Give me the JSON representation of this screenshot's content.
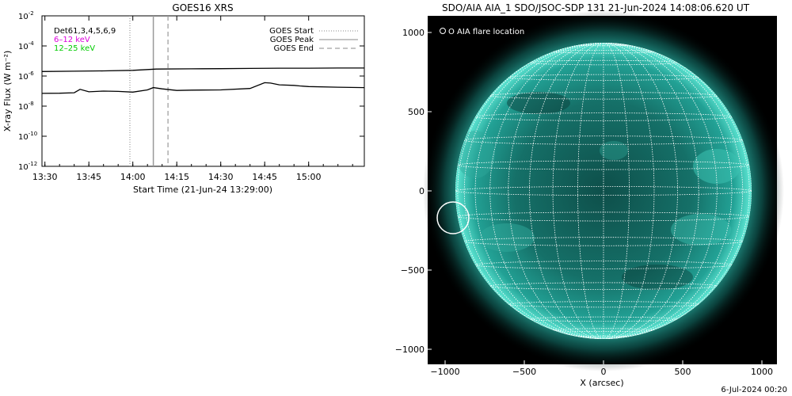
{
  "chart_data": [
    {
      "type": "line",
      "title": "GOES16 XRS",
      "xlabel": "Start Time (21-Jun-24 13:29:00)",
      "ylabel": "X-ray Flux (W m⁻²)",
      "y_scale": "log",
      "ylim": [
        "1e-12",
        "1e-2"
      ],
      "y_ticks": [
        {
          "exp": "-2",
          "value": 0.01
        },
        {
          "exp": "-4",
          "value": 0.0001
        },
        {
          "exp": "-6",
          "value": 1e-06
        },
        {
          "exp": "-8",
          "value": 1e-08
        },
        {
          "exp": "-10",
          "value": 1e-10
        },
        {
          "exp": "-12",
          "value": 1e-12
        }
      ],
      "x_ticks": [
        "13:30",
        "13:45",
        "14:00",
        "14:15",
        "14:30",
        "14:45",
        "15:00"
      ],
      "legend_left": [
        {
          "label": "Det61,3,4,5,6,9",
          "color": "#000000"
        },
        {
          "label": "6–12  keV",
          "color": "#dd00dd"
        },
        {
          "label": "12–25  keV",
          "color": "#00cc00"
        }
      ],
      "legend_right": [
        {
          "label": "GOES Start",
          "style": "dotted"
        },
        {
          "label": "GOES Peak",
          "style": "solid"
        },
        {
          "label": "GOES End",
          "style": "dashed"
        }
      ],
      "markers": {
        "start": "13:59",
        "peak": "14:07",
        "end": "14:12"
      },
      "series": [
        {
          "name": "",
          "x": [
            "13:29",
            "13:40",
            "13:50",
            "14:00",
            "14:05",
            "14:08",
            "14:20",
            "14:30",
            "14:40",
            "14:50",
            "15:00",
            "15:10",
            "15:19"
          ],
          "y": [
            2e-06,
            2.1e-06,
            2.2e-06,
            2.4e-06,
            2.7e-06,
            2.9e-06,
            3e-06,
            3.1e-06,
            3.2e-06,
            3.3e-06,
            3.3e-06,
            3.4e-06,
            3.4e-06
          ]
        },
        {
          "name": "",
          "x": [
            "13:29",
            "13:35",
            "13:40",
            "13:42",
            "13:45",
            "13:50",
            "13:55",
            "14:00",
            "14:05",
            "14:07",
            "14:10",
            "14:15",
            "14:20",
            "14:30",
            "14:40",
            "14:45",
            "14:47",
            "14:50",
            "14:55",
            "14:57",
            "15:00",
            "15:10",
            "15:19"
          ],
          "y": [
            7e-08,
            7.2e-08,
            7.8e-08,
            1.3e-07,
            9e-08,
            1e-07,
            9.5e-08,
            8.5e-08,
            1.2e-07,
            1.7e-07,
            1.4e-07,
            1.1e-07,
            1.15e-07,
            1.2e-07,
            1.5e-07,
            3.6e-07,
            3.4e-07,
            2.6e-07,
            2.4e-07,
            2.2e-07,
            2e-07,
            1.8e-07,
            1.7e-07
          ]
        }
      ]
    },
    {
      "type": "image",
      "title": "SDO/AIA AIA_1 SDO/JSOC-SDP 131 21-Jun-2024 14:08:06.620 UT",
      "xlabel": "X (arcsec)",
      "x_ticks": [
        "−1000",
        "−500",
        "0",
        "500",
        "1000"
      ],
      "y_ticks": [
        "1000",
        "500",
        "0",
        "−500",
        "−1000"
      ],
      "legend": "O AIA flare location",
      "flare_location_arcsec": [
        -950,
        -170
      ],
      "colors": {
        "disk": "#1d8f85",
        "limb": "#58e6d3",
        "grid": "#ffffff"
      }
    }
  ],
  "footer": "6-Jul-2024 00:20"
}
